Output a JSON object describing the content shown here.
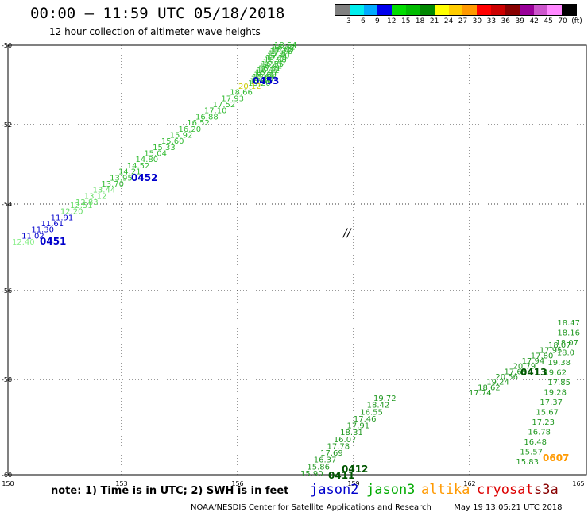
{
  "header": {
    "title": "00:00 – 11:59 UTC 05/18/2018",
    "subtitle": "12 hour collection of altimeter wave heights"
  },
  "legend": {
    "colors": [
      "#808080",
      "#00eeee",
      "#00aaff",
      "#0000ee",
      "#00dd00",
      "#00bb00",
      "#008800",
      "#ffff00",
      "#ffcc00",
      "#ff9900",
      "#ff0000",
      "#cc0000",
      "#880000",
      "#990099",
      "#cc55cc",
      "#ff88ff",
      "#000000"
    ],
    "labels": [
      "3",
      "6",
      "9",
      "12",
      "15",
      "18",
      "21",
      "24",
      "27",
      "30",
      "33",
      "36",
      "39",
      "42",
      "45",
      "70",
      "(ft)"
    ]
  },
  "map": {
    "x_ticks": [
      "150",
      "153",
      "156",
      "159",
      "162",
      "165"
    ],
    "y_ticks": [
      "-50",
      "-52",
      "-54",
      "-56",
      "-58",
      "-60"
    ],
    "island_label": "//",
    "tracks": [
      {
        "time": "0453",
        "time_color": "#0000cc",
        "values": [
          {
            "v": "18.54",
            "c": "#33bb33"
          },
          {
            "v": "18.32",
            "c": "#33bb33"
          },
          {
            "v": "18.09",
            "c": "#33bb33"
          },
          {
            "v": "17.76",
            "c": "#33bb33"
          },
          {
            "v": "17.57",
            "c": "#33bb33"
          },
          {
            "v": "17.40",
            "c": "#33bb33"
          },
          {
            "v": "17.21",
            "c": "#33bb33"
          },
          {
            "v": "16.98",
            "c": "#33bb33"
          },
          {
            "v": "16.70",
            "c": "#33bb33"
          },
          {
            "v": "16.55",
            "c": "#33bb33"
          },
          {
            "v": "16.42",
            "c": "#33bb33"
          },
          {
            "v": "16.31",
            "c": "#33bb33"
          },
          {
            "v": "16.12",
            "c": "#33bb33"
          },
          {
            "v": "15.97",
            "c": "#33bb33"
          },
          {
            "v": "15.80",
            "c": "#33bb33"
          },
          {
            "v": "15.64",
            "c": "#33bb33"
          },
          {
            "v": "15.50",
            "c": "#33bb33"
          },
          {
            "v": "15.36",
            "c": "#33bb33"
          },
          {
            "v": "15.20",
            "c": "#33bb33"
          }
        ]
      },
      {
        "time": "0452",
        "time_color": "#0000cc",
        "values": [
          {
            "v": "20.12",
            "c": "#cccc00"
          },
          {
            "v": "18.66",
            "c": "#33bb33"
          },
          {
            "v": "17.93",
            "c": "#33bb33"
          },
          {
            "v": "17.52",
            "c": "#33bb33"
          },
          {
            "v": "17.10",
            "c": "#33bb33"
          },
          {
            "v": "16.88",
            "c": "#33bb33"
          },
          {
            "v": "16.52",
            "c": "#33bb33"
          },
          {
            "v": "16.20",
            "c": "#33bb33"
          },
          {
            "v": "15.92",
            "c": "#33bb33"
          },
          {
            "v": "15.60",
            "c": "#33bb33"
          },
          {
            "v": "15.33",
            "c": "#33bb33"
          },
          {
            "v": "15.04",
            "c": "#33bb33"
          },
          {
            "v": "14.80",
            "c": "#33bb33"
          },
          {
            "v": "14.52",
            "c": "#33bb33"
          },
          {
            "v": "14.21",
            "c": "#33bb33"
          },
          {
            "v": "13.95",
            "c": "#33bb33"
          },
          {
            "v": "13.70",
            "c": "#33bb33"
          },
          {
            "v": "13.44",
            "c": "#66dd66"
          },
          {
            "v": "13.12",
            "c": "#66dd66"
          },
          {
            "v": "12.83",
            "c": "#66dd66"
          }
        ]
      },
      {
        "time": "0451",
        "time_color": "#0000cc",
        "values": [
          {
            "v": "12.51",
            "c": "#66dd66"
          },
          {
            "v": "12.20",
            "c": "#66dd66"
          },
          {
            "v": "11.91",
            "c": "#0000cc"
          },
          {
            "v": "11.61",
            "c": "#0000cc"
          },
          {
            "v": "11.30",
            "c": "#0000cc"
          },
          {
            "v": "11.02",
            "c": "#0000cc"
          },
          {
            "v": "12.40",
            "c": "#88ee88"
          }
        ]
      },
      {
        "time": "0413",
        "time_color": "#005500",
        "values": [
          {
            "v": "18.47",
            "c": "#229922"
          },
          {
            "v": "18.16",
            "c": "#229922"
          },
          {
            "v": "18.07",
            "c": "#229922"
          },
          {
            "v": "18.0",
            "c": "#229922"
          },
          {
            "v": "19.38",
            "c": "#229922"
          },
          {
            "v": "19.62",
            "c": "#229922"
          },
          {
            "v": "17.85",
            "c": "#229922"
          },
          {
            "v": "19.28",
            "c": "#229922"
          },
          {
            "v": "17.37",
            "c": "#229922"
          },
          {
            "v": "15.67",
            "c": "#229922"
          },
          {
            "v": "17.23",
            "c": "#229922"
          },
          {
            "v": "16.78",
            "c": "#229922"
          },
          {
            "v": "16.48",
            "c": "#229922"
          },
          {
            "v": "15.57",
            "c": "#229922"
          },
          {
            "v": "15.83",
            "c": "#229922"
          },
          {
            "v": "18.07",
            "c": "#229922"
          },
          {
            "v": "17.95",
            "c": "#229922"
          },
          {
            "v": "17.80",
            "c": "#229922"
          },
          {
            "v": "17.94",
            "c": "#229922"
          },
          {
            "v": "20.79",
            "c": "#229922"
          },
          {
            "v": "17.65",
            "c": "#229922"
          },
          {
            "v": "20.56",
            "c": "#229922"
          },
          {
            "v": "19.24",
            "c": "#229922"
          },
          {
            "v": "18.62",
            "c": "#229922"
          },
          {
            "v": "17.74",
            "c": "#229922"
          }
        ]
      },
      {
        "time": "0412",
        "time_color": "#005500",
        "values": [
          {
            "v": "19.72",
            "c": "#229922"
          },
          {
            "v": "18.42",
            "c": "#229922"
          },
          {
            "v": "16.55",
            "c": "#229922"
          },
          {
            "v": "17.46",
            "c": "#229922"
          },
          {
            "v": "17.91",
            "c": "#229922"
          },
          {
            "v": "18.31",
            "c": "#229922"
          },
          {
            "v": "16.07",
            "c": "#229922"
          },
          {
            "v": "17.78",
            "c": "#229922"
          },
          {
            "v": "17.69",
            "c": "#229922"
          },
          {
            "v": "16.37",
            "c": "#229922"
          },
          {
            "v": "15.86",
            "c": "#229922"
          },
          {
            "v": "15.90",
            "c": "#229922"
          }
        ]
      },
      {
        "time": "0411",
        "time_color": "#005500",
        "values": []
      },
      {
        "time": "0607",
        "time_color": "#ff9900",
        "values": []
      }
    ]
  },
  "note": "note:  1) Time is in UTC;  2) SWH is in feet",
  "satellites": [
    {
      "name": "jason2",
      "color": "#0000cc"
    },
    {
      "name": "jason3",
      "color": "#00aa00"
    },
    {
      "name": "altika",
      "color": "#ff9900"
    },
    {
      "name": "cryosat",
      "color": "#dd0000"
    },
    {
      "name": "s3a",
      "color": "#880000"
    }
  ],
  "footer": {
    "agency": "NOAA/NESDIS Center for Satellite Applications and Research",
    "timestamp": "May 19 13:05:21 UTC 2018"
  }
}
